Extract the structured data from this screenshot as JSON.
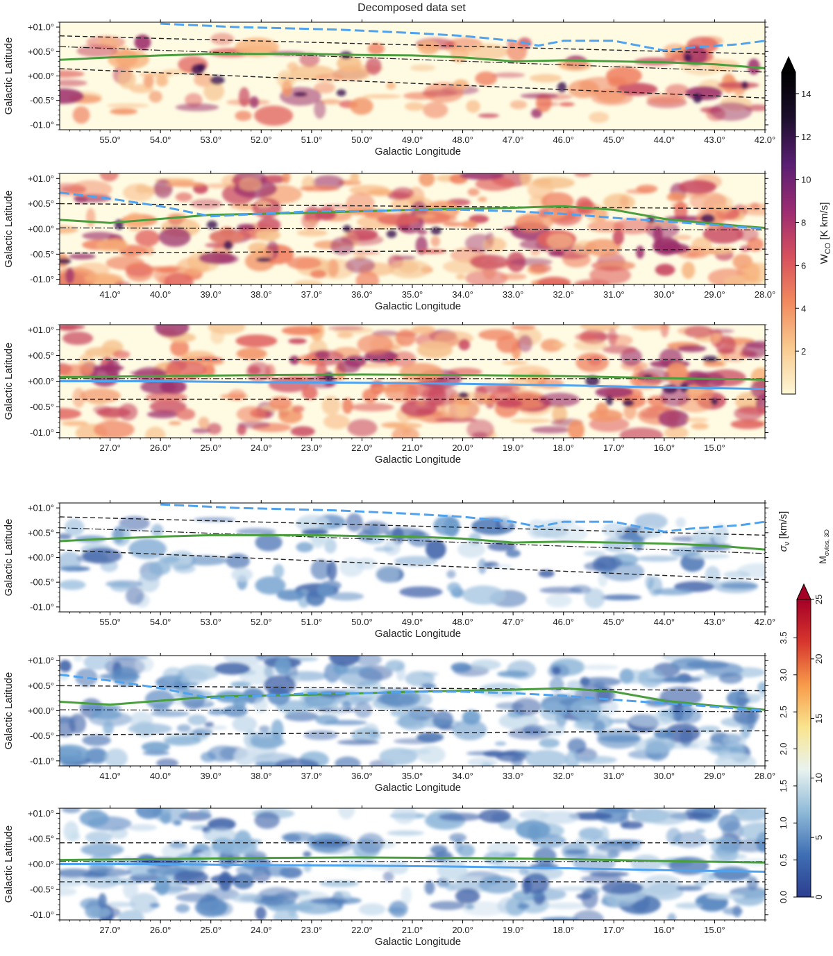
{
  "figure": {
    "title": "Decomposed data set"
  },
  "chart_data": [
    {
      "type": "heatmap",
      "group": "top",
      "xlabel": "Galactic Longitude",
      "ylabel": "Galactic Latitude",
      "xlim": [
        56.0,
        42.0
      ],
      "ylim": [
        -1.1,
        1.1
      ],
      "xticks": [
        "55.0°",
        "54.0°",
        "53.0°",
        "52.0°",
        "51.0°",
        "50.0°",
        "49.0°",
        "48.0°",
        "47.0°",
        "46.0°",
        "45.0°",
        "44.0°",
        "43.0°",
        "42.0°"
      ],
      "xtick_values": [
        55,
        54,
        53,
        52,
        51,
        50,
        49,
        48,
        47,
        46,
        45,
        44,
        43,
        42
      ],
      "yticks": [
        "+01.0°",
        "+00.5°",
        "+00.0°",
        "-00.5°",
        "-01.0°"
      ],
      "ytick_values": [
        1.0,
        0.5,
        0.0,
        -0.5,
        -1.0
      ],
      "blue": [
        [
          54.0,
          1.07
        ],
        [
          52.5,
          1.0
        ],
        [
          50.5,
          0.95
        ],
        [
          49.0,
          0.88
        ],
        [
          48.0,
          0.82
        ],
        [
          47.0,
          0.72
        ],
        [
          46.5,
          0.62
        ],
        [
          46.0,
          0.72
        ],
        [
          45.0,
          0.72
        ],
        [
          44.5,
          0.62
        ],
        [
          44.0,
          0.52
        ],
        [
          43.5,
          0.58
        ],
        [
          42.5,
          0.65
        ],
        [
          42.0,
          0.72
        ]
      ],
      "green": [
        [
          56,
          0.33
        ],
        [
          55,
          0.38
        ],
        [
          54,
          0.42
        ],
        [
          53,
          0.45
        ],
        [
          52,
          0.45
        ],
        [
          51,
          0.45
        ],
        [
          50,
          0.43
        ],
        [
          49,
          0.42
        ],
        [
          48,
          0.38
        ],
        [
          47,
          0.3
        ],
        [
          46,
          0.32
        ],
        [
          45,
          0.3
        ],
        [
          44,
          0.28
        ],
        [
          43,
          0.24
        ],
        [
          42,
          0.16
        ]
      ],
      "dash_upper": [
        [
          56,
          0.82
        ],
        [
          42,
          0.45
        ]
      ],
      "dash_lower": [
        [
          56,
          0.15
        ],
        [
          42,
          -0.45
        ]
      ],
      "dashdot": [
        [
          56,
          0.6
        ],
        [
          42,
          0.08
        ]
      ]
    },
    {
      "type": "heatmap",
      "group": "top",
      "xlabel": "Galactic Longitude",
      "ylabel": "Galactic Latitude",
      "xlim": [
        42.0,
        28.0
      ],
      "ylim": [
        -1.1,
        1.1
      ],
      "xticks": [
        "41.0°",
        "40.0°",
        "39.0°",
        "38.0°",
        "37.0°",
        "36.0°",
        "35.0°",
        "34.0°",
        "33.0°",
        "32.0°",
        "31.0°",
        "30.0°",
        "29.0°",
        "28.0°"
      ],
      "xtick_values": [
        41,
        40,
        39,
        38,
        37,
        36,
        35,
        34,
        33,
        32,
        31,
        30,
        29,
        28
      ],
      "yticks": [
        "+01.0°",
        "+00.5°",
        "+00.0°",
        "-00.5°",
        "-01.0°"
      ],
      "ytick_values": [
        1.0,
        0.5,
        0.0,
        -0.5,
        -1.0
      ],
      "blue": [
        [
          42,
          0.72
        ],
        [
          41,
          0.6
        ],
        [
          40,
          0.45
        ],
        [
          39,
          0.25
        ],
        [
          38,
          0.3
        ],
        [
          37,
          0.35
        ],
        [
          36,
          0.35
        ],
        [
          35,
          0.38
        ],
        [
          34,
          0.38
        ],
        [
          33,
          0.35
        ],
        [
          32,
          0.3
        ],
        [
          31,
          0.22
        ],
        [
          30,
          0.15
        ],
        [
          29,
          0.08
        ],
        [
          28,
          0.0
        ]
      ],
      "green": [
        [
          42,
          0.18
        ],
        [
          41,
          0.12
        ],
        [
          40,
          0.2
        ],
        [
          39,
          0.28
        ],
        [
          38,
          0.3
        ],
        [
          37,
          0.32
        ],
        [
          36,
          0.35
        ],
        [
          35,
          0.38
        ],
        [
          34,
          0.4
        ],
        [
          33,
          0.42
        ],
        [
          32,
          0.45
        ],
        [
          31,
          0.38
        ],
        [
          30,
          0.2
        ],
        [
          29,
          0.1
        ],
        [
          28,
          0.02
        ]
      ],
      "dash_upper": [
        [
          42,
          0.5
        ],
        [
          28,
          0.4
        ]
      ],
      "dash_lower": [
        [
          42,
          -0.48
        ],
        [
          28,
          -0.4
        ]
      ],
      "dashdot": [
        [
          42,
          0.02
        ],
        [
          28,
          -0.02
        ]
      ]
    },
    {
      "type": "heatmap",
      "group": "top",
      "xlabel": "Galactic Longitude",
      "ylabel": "Galactic Latitude",
      "xlim": [
        28.0,
        14.0
      ],
      "ylim": [
        -1.1,
        1.1
      ],
      "xticks": [
        "27.0°",
        "26.0°",
        "25.0°",
        "24.0°",
        "23.0°",
        "22.0°",
        "21.0°",
        "20.0°",
        "19.0°",
        "18.0°",
        "17.0°",
        "16.0°",
        "15.0°"
      ],
      "xtick_values": [
        27,
        26,
        25,
        24,
        23,
        22,
        21,
        20,
        19,
        18,
        17,
        16,
        15
      ],
      "yticks": [
        "+01.0°",
        "+00.5°",
        "+00.0°",
        "-00.5°",
        "-01.0°"
      ],
      "ytick_values": [
        1.0,
        0.5,
        0.0,
        -0.5,
        -1.0
      ],
      "blue": [
        [
          28,
          0.0
        ],
        [
          26,
          0.0
        ],
        [
          24,
          -0.02
        ],
        [
          22,
          -0.03
        ],
        [
          20,
          -0.05
        ],
        [
          18,
          -0.08
        ],
        [
          16,
          -0.12
        ],
        [
          14,
          -0.15
        ]
      ],
      "green": [
        [
          28,
          0.08
        ],
        [
          26,
          0.1
        ],
        [
          24,
          0.12
        ],
        [
          22,
          0.13
        ],
        [
          20,
          0.12
        ],
        [
          18,
          0.1
        ],
        [
          16,
          0.06
        ],
        [
          14,
          0.03
        ]
      ],
      "dash_upper": [
        [
          28,
          0.42
        ],
        [
          14,
          0.42
        ]
      ],
      "dash_lower": [
        [
          28,
          -0.35
        ],
        [
          14,
          -0.35
        ]
      ],
      "dashdot": [
        [
          28,
          0.05
        ],
        [
          14,
          0.05
        ]
      ]
    },
    {
      "type": "heatmap",
      "group": "bottom",
      "xlabel": "Galactic Longitude",
      "ylabel": "Galactic Latitude",
      "xlim": [
        56.0,
        42.0
      ],
      "ylim": [
        -1.1,
        1.1
      ],
      "xticks": [
        "55.0°",
        "54.0°",
        "53.0°",
        "52.0°",
        "51.0°",
        "50.0°",
        "49.0°",
        "48.0°",
        "47.0°",
        "46.0°",
        "45.0°",
        "44.0°",
        "43.0°",
        "42.0°"
      ],
      "xtick_values": [
        55,
        54,
        53,
        52,
        51,
        50,
        49,
        48,
        47,
        46,
        45,
        44,
        43,
        42
      ],
      "yticks": [
        "+01.0°",
        "+00.5°",
        "+00.0°",
        "-00.5°",
        "-01.0°"
      ],
      "ytick_values": [
        1.0,
        0.5,
        0.0,
        -0.5,
        -1.0
      ],
      "blue": [
        [
          54.0,
          1.07
        ],
        [
          52.5,
          1.0
        ],
        [
          50.5,
          0.95
        ],
        [
          49.0,
          0.88
        ],
        [
          48.0,
          0.82
        ],
        [
          47.0,
          0.72
        ],
        [
          46.5,
          0.62
        ],
        [
          46.0,
          0.72
        ],
        [
          45.0,
          0.72
        ],
        [
          44.5,
          0.62
        ],
        [
          44.0,
          0.52
        ],
        [
          43.5,
          0.58
        ],
        [
          42.5,
          0.65
        ],
        [
          42.0,
          0.72
        ]
      ],
      "green": [
        [
          56,
          0.33
        ],
        [
          55,
          0.38
        ],
        [
          54,
          0.42
        ],
        [
          53,
          0.45
        ],
        [
          52,
          0.45
        ],
        [
          51,
          0.45
        ],
        [
          50,
          0.43
        ],
        [
          49,
          0.42
        ],
        [
          48,
          0.38
        ],
        [
          47,
          0.3
        ],
        [
          46,
          0.32
        ],
        [
          45,
          0.3
        ],
        [
          44,
          0.28
        ],
        [
          43,
          0.24
        ],
        [
          42,
          0.16
        ]
      ],
      "dash_upper": [
        [
          56,
          0.82
        ],
        [
          42,
          0.45
        ]
      ],
      "dash_lower": [
        [
          56,
          0.15
        ],
        [
          42,
          -0.45
        ]
      ],
      "dashdot": [
        [
          56,
          0.6
        ],
        [
          42,
          0.08
        ]
      ]
    },
    {
      "type": "heatmap",
      "group": "bottom",
      "xlabel": "Galactic Longitude",
      "ylabel": "Galactic Latitude",
      "xlim": [
        42.0,
        28.0
      ],
      "ylim": [
        -1.1,
        1.1
      ],
      "xticks": [
        "41.0°",
        "40.0°",
        "39.0°",
        "38.0°",
        "37.0°",
        "36.0°",
        "35.0°",
        "34.0°",
        "33.0°",
        "32.0°",
        "31.0°",
        "30.0°",
        "29.0°",
        "28.0°"
      ],
      "xtick_values": [
        41,
        40,
        39,
        38,
        37,
        36,
        35,
        34,
        33,
        32,
        31,
        30,
        29,
        28
      ],
      "yticks": [
        "+01.0°",
        "+00.5°",
        "+00.0°",
        "-00.5°",
        "-01.0°"
      ],
      "ytick_values": [
        1.0,
        0.5,
        0.0,
        -0.5,
        -1.0
      ],
      "blue": [
        [
          42,
          0.72
        ],
        [
          41,
          0.6
        ],
        [
          40,
          0.45
        ],
        [
          39,
          0.25
        ],
        [
          38,
          0.3
        ],
        [
          37,
          0.35
        ],
        [
          36,
          0.35
        ],
        [
          35,
          0.38
        ],
        [
          34,
          0.38
        ],
        [
          33,
          0.35
        ],
        [
          32,
          0.3
        ],
        [
          31,
          0.22
        ],
        [
          30,
          0.15
        ],
        [
          29,
          0.08
        ],
        [
          28,
          0.0
        ]
      ],
      "green": [
        [
          42,
          0.18
        ],
        [
          41,
          0.12
        ],
        [
          40,
          0.2
        ],
        [
          39,
          0.28
        ],
        [
          38,
          0.3
        ],
        [
          37,
          0.32
        ],
        [
          36,
          0.35
        ],
        [
          35,
          0.38
        ],
        [
          34,
          0.4
        ],
        [
          33,
          0.42
        ],
        [
          32,
          0.45
        ],
        [
          31,
          0.38
        ],
        [
          30,
          0.2
        ],
        [
          29,
          0.1
        ],
        [
          28,
          0.02
        ]
      ],
      "dash_upper": [
        [
          42,
          0.5
        ],
        [
          28,
          0.4
        ]
      ],
      "dash_lower": [
        [
          42,
          -0.48
        ],
        [
          28,
          -0.4
        ]
      ],
      "dashdot": [
        [
          42,
          0.02
        ],
        [
          28,
          -0.02
        ]
      ]
    },
    {
      "type": "heatmap",
      "group": "bottom",
      "xlabel": "Galactic Longitude",
      "ylabel": "Galactic Latitude",
      "xlim": [
        28.0,
        14.0
      ],
      "ylim": [
        -1.1,
        1.1
      ],
      "xticks": [
        "27.0°",
        "26.0°",
        "25.0°",
        "24.0°",
        "23.0°",
        "22.0°",
        "21.0°",
        "20.0°",
        "19.0°",
        "18.0°",
        "17.0°",
        "16.0°",
        "15.0°"
      ],
      "xtick_values": [
        27,
        26,
        25,
        24,
        23,
        22,
        21,
        20,
        19,
        18,
        17,
        16,
        15
      ],
      "yticks": [
        "+01.0°",
        "+00.5°",
        "+00.0°",
        "-00.5°",
        "-01.0°"
      ],
      "ytick_values": [
        1.0,
        0.5,
        0.0,
        -0.5,
        -1.0
      ],
      "blue": [
        [
          28,
          0.0
        ],
        [
          26,
          0.0
        ],
        [
          24,
          -0.02
        ],
        [
          22,
          -0.03
        ],
        [
          20,
          -0.05
        ],
        [
          18,
          -0.08
        ],
        [
          16,
          -0.12
        ],
        [
          14,
          -0.15
        ]
      ],
      "green": [
        [
          28,
          0.08
        ],
        [
          26,
          0.1
        ],
        [
          24,
          0.12
        ],
        [
          22,
          0.13
        ],
        [
          20,
          0.12
        ],
        [
          18,
          0.1
        ],
        [
          16,
          0.06
        ],
        [
          14,
          0.03
        ]
      ],
      "dash_upper": [
        [
          28,
          0.42
        ],
        [
          14,
          0.42
        ]
      ],
      "dash_lower": [
        [
          28,
          -0.35
        ],
        [
          14,
          -0.35
        ]
      ],
      "dashdot": [
        [
          28,
          0.05
        ],
        [
          14,
          0.05
        ]
      ]
    }
  ],
  "colorbars": {
    "wco": {
      "label": "W",
      "label_sub": "CO",
      "label_unit": " [K km/s]",
      "range": [
        0,
        15
      ],
      "ticks": [
        "2",
        "4",
        "6",
        "8",
        "10",
        "12",
        "14"
      ],
      "tick_values": [
        2,
        4,
        6,
        8,
        10,
        12,
        14
      ],
      "colors": [
        "#fdf7d6",
        "#f9ca8f",
        "#f28a5e",
        "#d64f5e",
        "#9b2c72",
        "#5a1f73",
        "#1c0f2d",
        "#000000"
      ]
    },
    "sigma": {
      "label": "σ",
      "label_sub": "v",
      "label_unit": " [km/s]",
      "range": [
        0,
        4
      ],
      "ticks": [
        "0.0",
        "0.5",
        "1.0",
        "1.5",
        "2.0",
        "2.5",
        "3.0",
        "3.5"
      ],
      "tick_values": [
        0,
        0.5,
        1.0,
        1.5,
        2.0,
        2.5,
        3.0,
        3.5
      ]
    },
    "mach": {
      "label": "M",
      "label_sub": "σvlos, 3D",
      "range": [
        0,
        25
      ],
      "ticks": [
        "0",
        "5",
        "10",
        "15",
        "20",
        "25"
      ],
      "tick_values": [
        0,
        5,
        10,
        15,
        20,
        25
      ],
      "colors": [
        "#2c3d8f",
        "#3f6fb4",
        "#8fbad8",
        "#e9f3ef",
        "#f9e48e",
        "#f79a4a",
        "#d7362e",
        "#a50026"
      ]
    }
  },
  "colors": {
    "blue_curve": "#4ea2ee",
    "green_curve": "#4a9e3d",
    "wco_bg": "#fffbe3",
    "wco_emission": "#f4a070",
    "mach_emission": "#5b8ac2"
  }
}
